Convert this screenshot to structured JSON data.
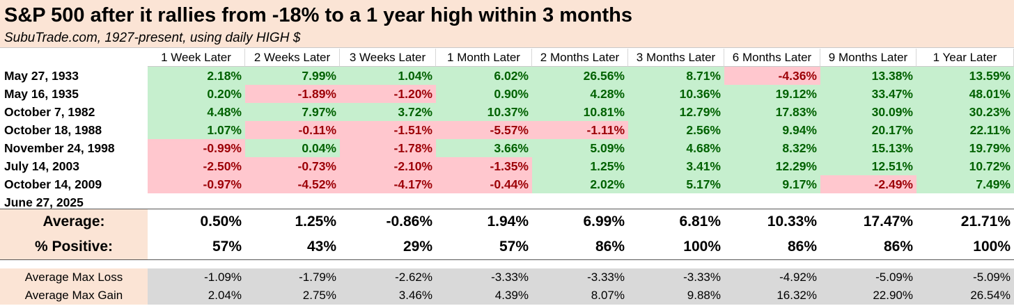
{
  "header": {
    "title": "S&P 500 after it rallies from -18% to a 1 year high within 3 months",
    "subtitle": "SubuTrade.com, 1927-present, using daily HIGH $"
  },
  "chart_data": {
    "type": "table",
    "columns": [
      "1 Week Later",
      "2 Weeks Later",
      "3 Weeks Later",
      "1 Month Later",
      "2 Months Later",
      "3 Months Later",
      "6 Months Later",
      "9 Months Later",
      "1 Year Later"
    ],
    "rows": [
      {
        "date": "May 27, 1933",
        "values": [
          "2.18%",
          "7.99%",
          "1.04%",
          "6.02%",
          "26.56%",
          "8.71%",
          "-4.36%",
          "13.38%",
          "13.59%"
        ]
      },
      {
        "date": "May 16, 1935",
        "values": [
          "0.20%",
          "-1.89%",
          "-1.20%",
          "0.90%",
          "4.28%",
          "10.36%",
          "19.12%",
          "33.47%",
          "48.01%"
        ]
      },
      {
        "date": "October 7, 1982",
        "values": [
          "4.48%",
          "7.97%",
          "3.72%",
          "10.37%",
          "10.81%",
          "12.79%",
          "17.83%",
          "30.09%",
          "30.23%"
        ]
      },
      {
        "date": "October 18, 1988",
        "values": [
          "1.07%",
          "-0.11%",
          "-1.51%",
          "-5.57%",
          "-1.11%",
          "2.56%",
          "9.94%",
          "20.17%",
          "22.11%"
        ]
      },
      {
        "date": "November 24, 1998",
        "values": [
          "-0.99%",
          "0.04%",
          "-1.78%",
          "3.66%",
          "5.09%",
          "4.68%",
          "8.32%",
          "15.13%",
          "19.79%"
        ]
      },
      {
        "date": "July 14, 2003",
        "values": [
          "-2.50%",
          "-0.73%",
          "-2.10%",
          "-1.35%",
          "1.25%",
          "3.41%",
          "12.29%",
          "12.51%",
          "10.72%"
        ]
      },
      {
        "date": "October 14, 2009",
        "values": [
          "-0.97%",
          "-4.52%",
          "-4.17%",
          "-0.44%",
          "2.02%",
          "5.17%",
          "9.17%",
          "-2.49%",
          "7.49%"
        ]
      },
      {
        "date": "June 27, 2025",
        "values": [
          "",
          "",
          "",
          "",
          "",
          "",
          "",
          "",
          ""
        ]
      }
    ],
    "summary": [
      {
        "label": "Average:",
        "values": [
          "0.50%",
          "1.25%",
          "-0.86%",
          "1.94%",
          "6.99%",
          "6.81%",
          "10.33%",
          "17.47%",
          "21.71%"
        ]
      },
      {
        "label": "% Positive:",
        "values": [
          "57%",
          "43%",
          "29%",
          "57%",
          "86%",
          "100%",
          "86%",
          "86%",
          "100%"
        ]
      }
    ],
    "max_stats": [
      {
        "label": "Average Max Loss",
        "values": [
          "-1.09%",
          "-1.79%",
          "-2.62%",
          "-3.33%",
          "-3.33%",
          "-3.33%",
          "-4.92%",
          "-5.09%",
          "-5.09%"
        ]
      },
      {
        "label": "Average Max Gain",
        "values": [
          "2.04%",
          "2.75%",
          "3.46%",
          "4.39%",
          "8.07%",
          "9.88%",
          "16.32%",
          "22.90%",
          "26.54%"
        ]
      }
    ]
  },
  "colors": {
    "header_bg": "#fbe4d5",
    "positive_bg": "#c6efce",
    "positive_text": "#006100",
    "negative_bg": "#ffc7ce",
    "negative_text": "#9c0006",
    "max_block_bg": "#d9d9d9"
  }
}
